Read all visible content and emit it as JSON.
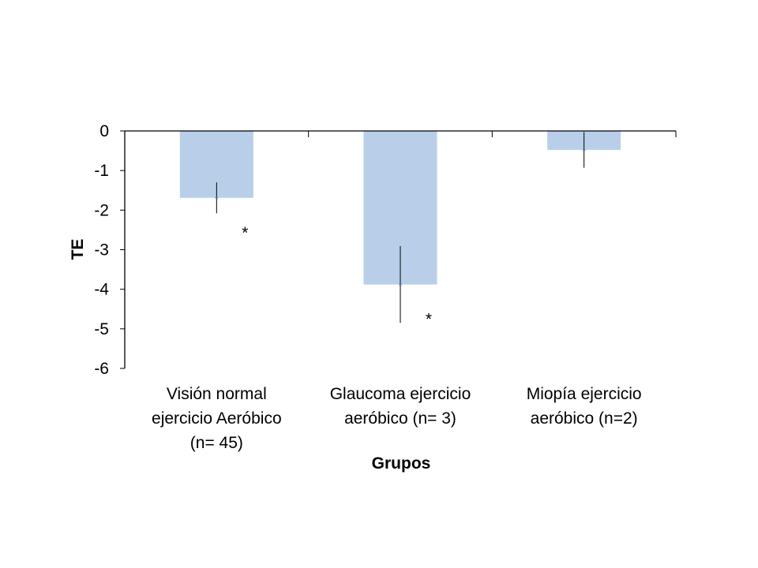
{
  "chart_data": {
    "type": "bar",
    "title": "",
    "xlabel": "Grupos",
    "ylabel": "TE",
    "ylim": [
      -6,
      0
    ],
    "yticks": [
      "0",
      "-1",
      "-2",
      "-3",
      "-4",
      "-5",
      "-6"
    ],
    "grid": false,
    "legend": "none",
    "bar_color": "#b9cfe9",
    "categories": [
      [
        "Visión normal",
        "ejercicio  Aeróbico",
        "(n= 45)"
      ],
      [
        "Glaucoma ejercicio",
        "aeróbico (n= 3)"
      ],
      [
        "Miopía  ejercicio",
        "aeróbico (n=2)"
      ]
    ],
    "values": [
      -1.69,
      -3.88,
      -0.48
    ],
    "error": [
      0.39,
      0.97,
      0.45
    ],
    "annotations": [
      "*",
      "*",
      ""
    ]
  }
}
